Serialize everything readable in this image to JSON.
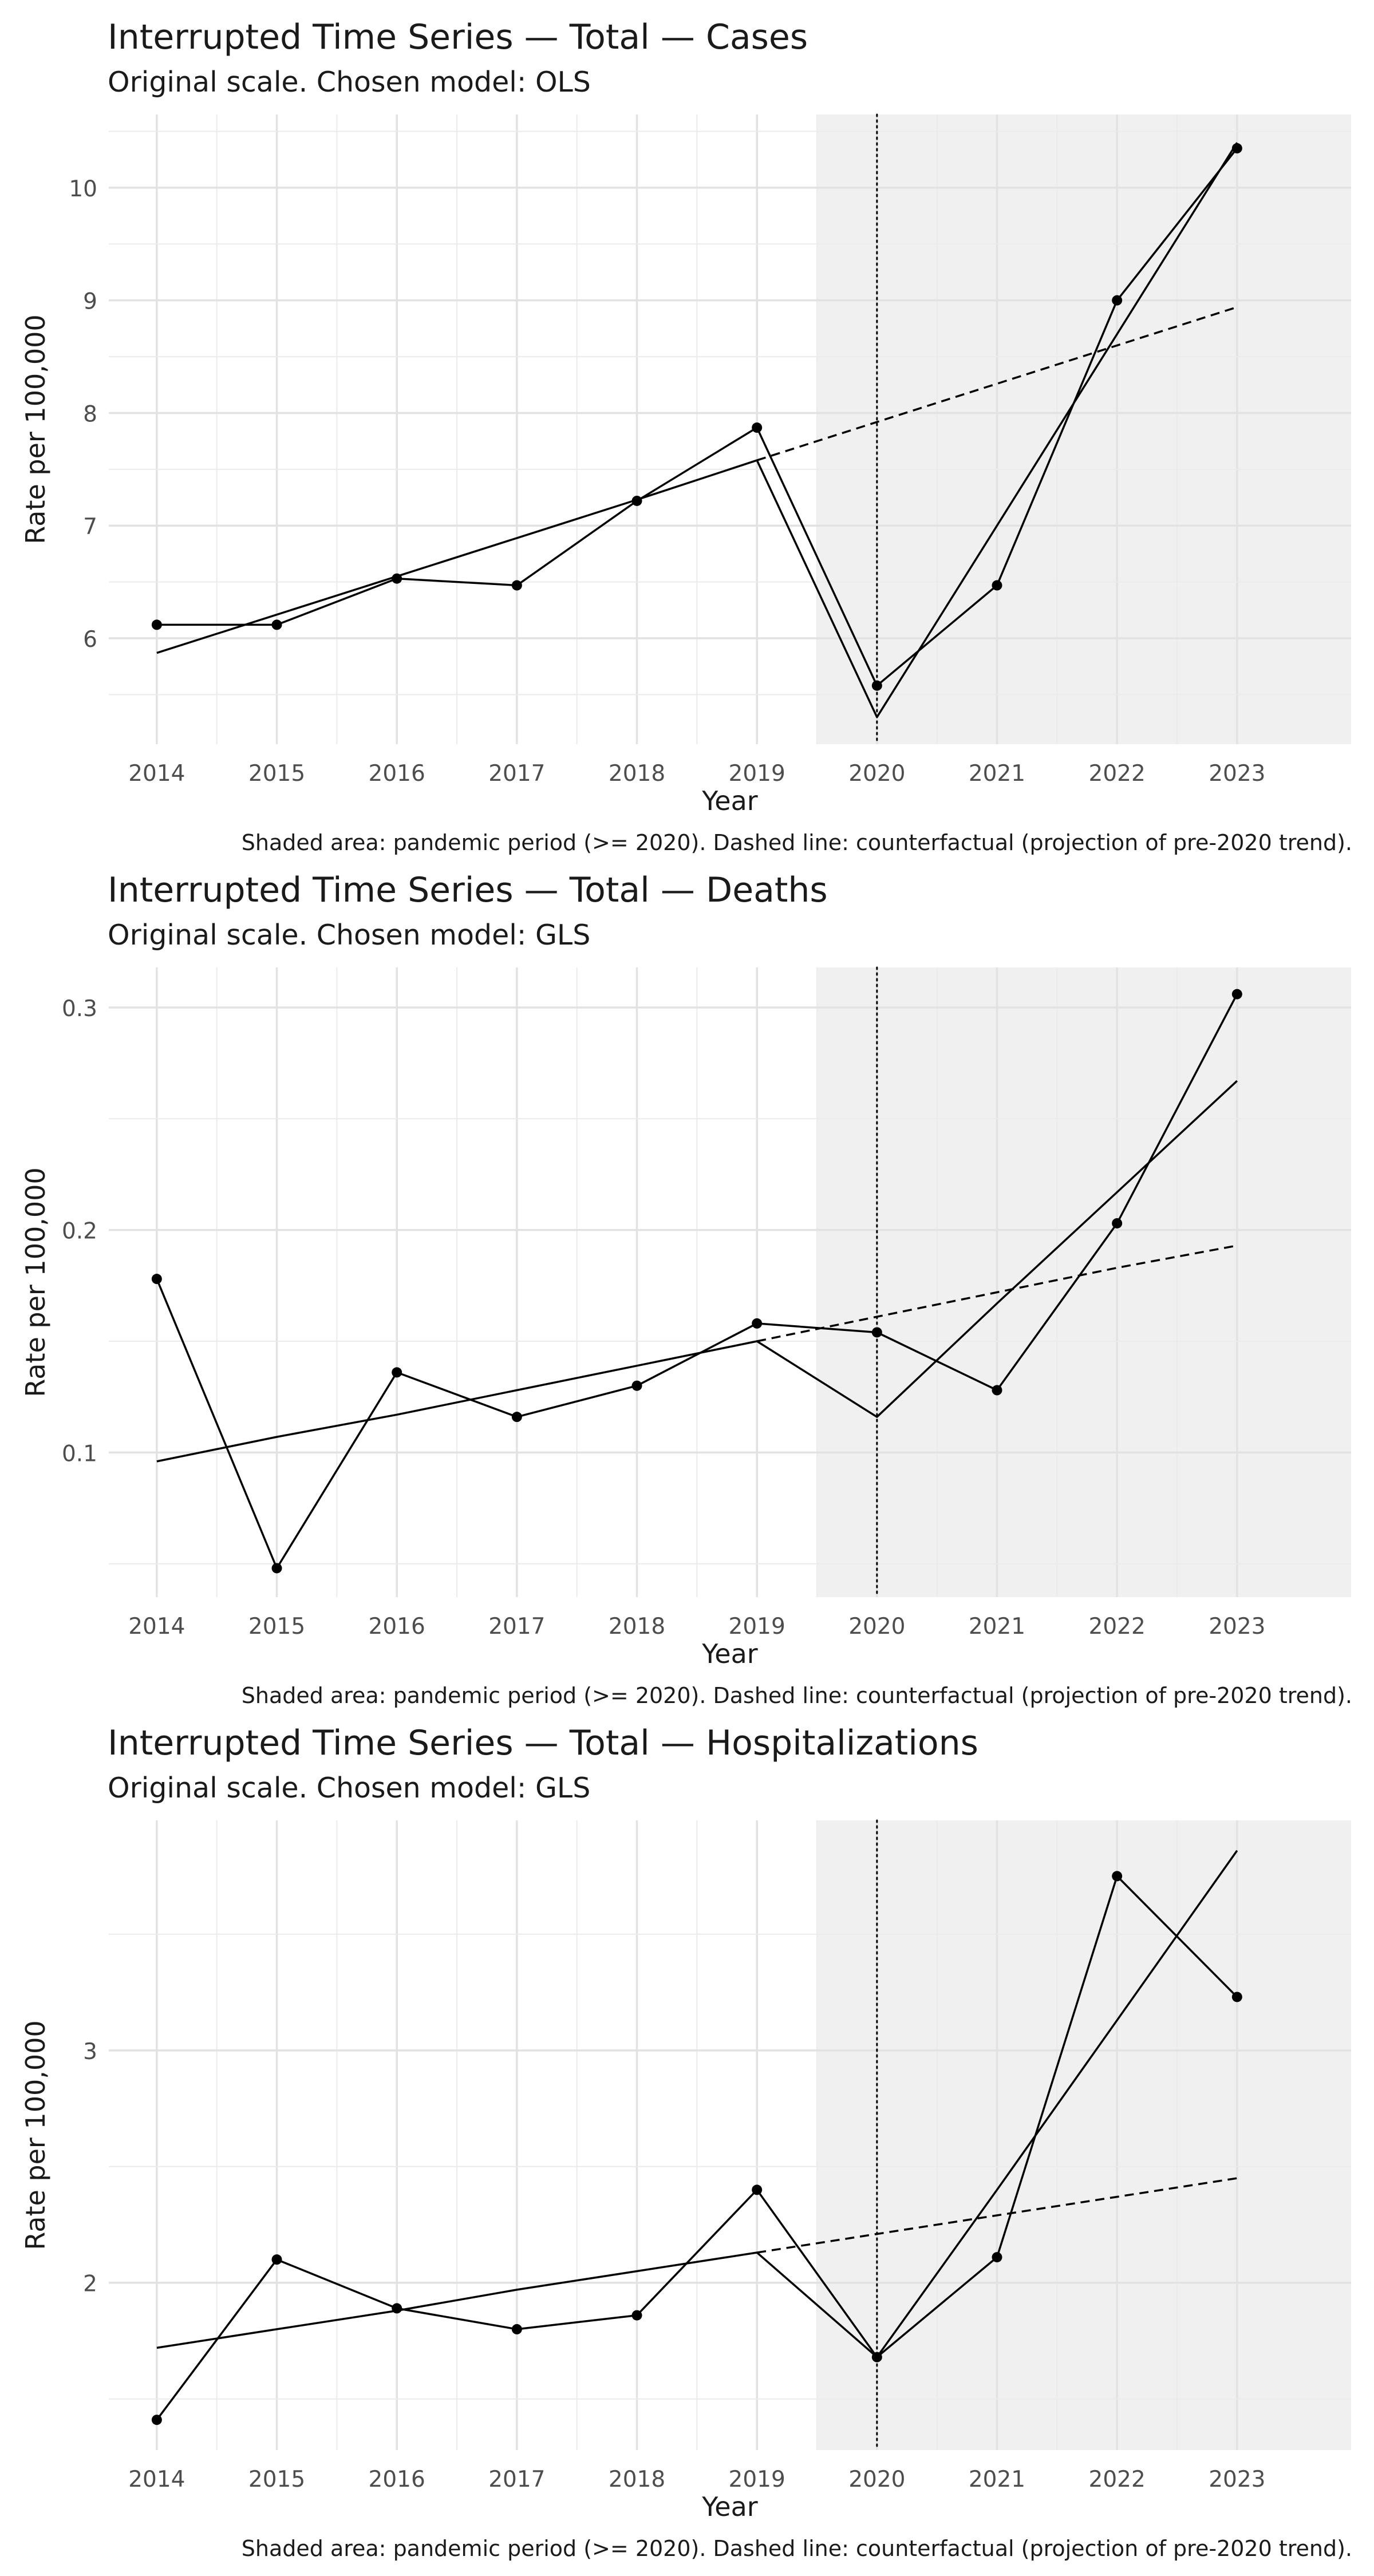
{
  "chart_data": [
    {
      "type": "line",
      "title": "Interrupted Time Series — Total — Cases",
      "subtitle": "Original scale. Chosen model: OLS",
      "xlabel": "Year",
      "ylabel": "Rate per 100,000",
      "caption": "Shaded area: pandemic period (>= 2020). Dashed line: counterfactual (projection of pre-2020 trend).",
      "x": [
        2014,
        2015,
        2016,
        2017,
        2018,
        2019,
        2020,
        2021,
        2022,
        2023
      ],
      "xlim": [
        2013.6,
        2023.95
      ],
      "ylim": [
        5.06,
        10.65
      ],
      "yticks": [
        6,
        7,
        8,
        9,
        10
      ],
      "ytick_labels": [
        "6",
        "7",
        "8",
        "9",
        "10"
      ],
      "grid": true,
      "shaded_from": 2019.5,
      "intervention_x": 2020,
      "series": [
        {
          "role": "observed",
          "values": [
            6.12,
            6.12,
            6.53,
            6.47,
            7.22,
            7.87,
            5.58,
            6.47,
            9.0,
            10.35
          ]
        },
        {
          "role": "fitted",
          "values": [
            5.87,
            6.21,
            6.55,
            6.89,
            7.23,
            7.58,
            5.3,
            7.0,
            8.7,
            10.4
          ]
        },
        {
          "role": "counterfactual",
          "x": [
            2019,
            2020,
            2021,
            2022,
            2023
          ],
          "values": [
            7.58,
            7.92,
            8.26,
            8.6,
            8.94
          ]
        }
      ]
    },
    {
      "type": "line",
      "title": "Interrupted Time Series — Total — Deaths",
      "subtitle": "Original scale. Chosen model: GLS",
      "xlabel": "Year",
      "ylabel": "Rate per 100,000",
      "caption": "Shaded area: pandemic period (>= 2020). Dashed line: counterfactual (projection of pre-2020 trend).",
      "x": [
        2014,
        2015,
        2016,
        2017,
        2018,
        2019,
        2020,
        2021,
        2022,
        2023
      ],
      "xlim": [
        2013.6,
        2023.95
      ],
      "ylim": [
        0.035,
        0.318
      ],
      "yticks": [
        0.1,
        0.2,
        0.3
      ],
      "ytick_labels": [
        "0.1",
        "0.2",
        "0.3"
      ],
      "grid": true,
      "shaded_from": 2019.5,
      "intervention_x": 2020,
      "series": [
        {
          "role": "observed",
          "values": [
            0.178,
            0.048,
            0.136,
            0.116,
            0.13,
            0.158,
            0.154,
            0.128,
            0.203,
            0.306
          ]
        },
        {
          "role": "fitted",
          "values": [
            0.096,
            0.107,
            0.117,
            0.128,
            0.139,
            0.15,
            0.116,
            0.167,
            0.217,
            0.267
          ]
        },
        {
          "role": "counterfactual",
          "x": [
            2019,
            2020,
            2021,
            2022,
            2023
          ],
          "values": [
            0.15,
            0.161,
            0.172,
            0.183,
            0.193
          ]
        }
      ]
    },
    {
      "type": "line",
      "title": "Interrupted Time Series — Total — Hospitalizations",
      "subtitle": "Original scale. Chosen model: GLS",
      "xlabel": "Year",
      "ylabel": "Rate per 100,000",
      "caption": "Shaded area: pandemic period (>= 2020). Dashed line: counterfactual (projection of pre-2020 trend).",
      "x": [
        2014,
        2015,
        2016,
        2017,
        2018,
        2019,
        2020,
        2021,
        2022,
        2023
      ],
      "xlim": [
        2013.6,
        2023.95
      ],
      "ylim": [
        1.28,
        3.99
      ],
      "yticks": [
        2,
        3
      ],
      "ytick_labels": [
        "2",
        "3"
      ],
      "grid": true,
      "shaded_from": 2019.5,
      "intervention_x": 2020,
      "series": [
        {
          "role": "observed",
          "values": [
            1.41,
            2.1,
            1.89,
            1.8,
            1.86,
            2.4,
            1.68,
            2.11,
            3.75,
            3.23
          ]
        },
        {
          "role": "fitted",
          "values": [
            1.72,
            1.8,
            1.88,
            1.97,
            2.05,
            2.13,
            1.68,
            2.4,
            3.13,
            3.86
          ]
        },
        {
          "role": "counterfactual",
          "x": [
            2019,
            2020,
            2021,
            2022,
            2023
          ],
          "values": [
            2.13,
            2.21,
            2.29,
            2.37,
            2.45
          ]
        }
      ]
    }
  ]
}
